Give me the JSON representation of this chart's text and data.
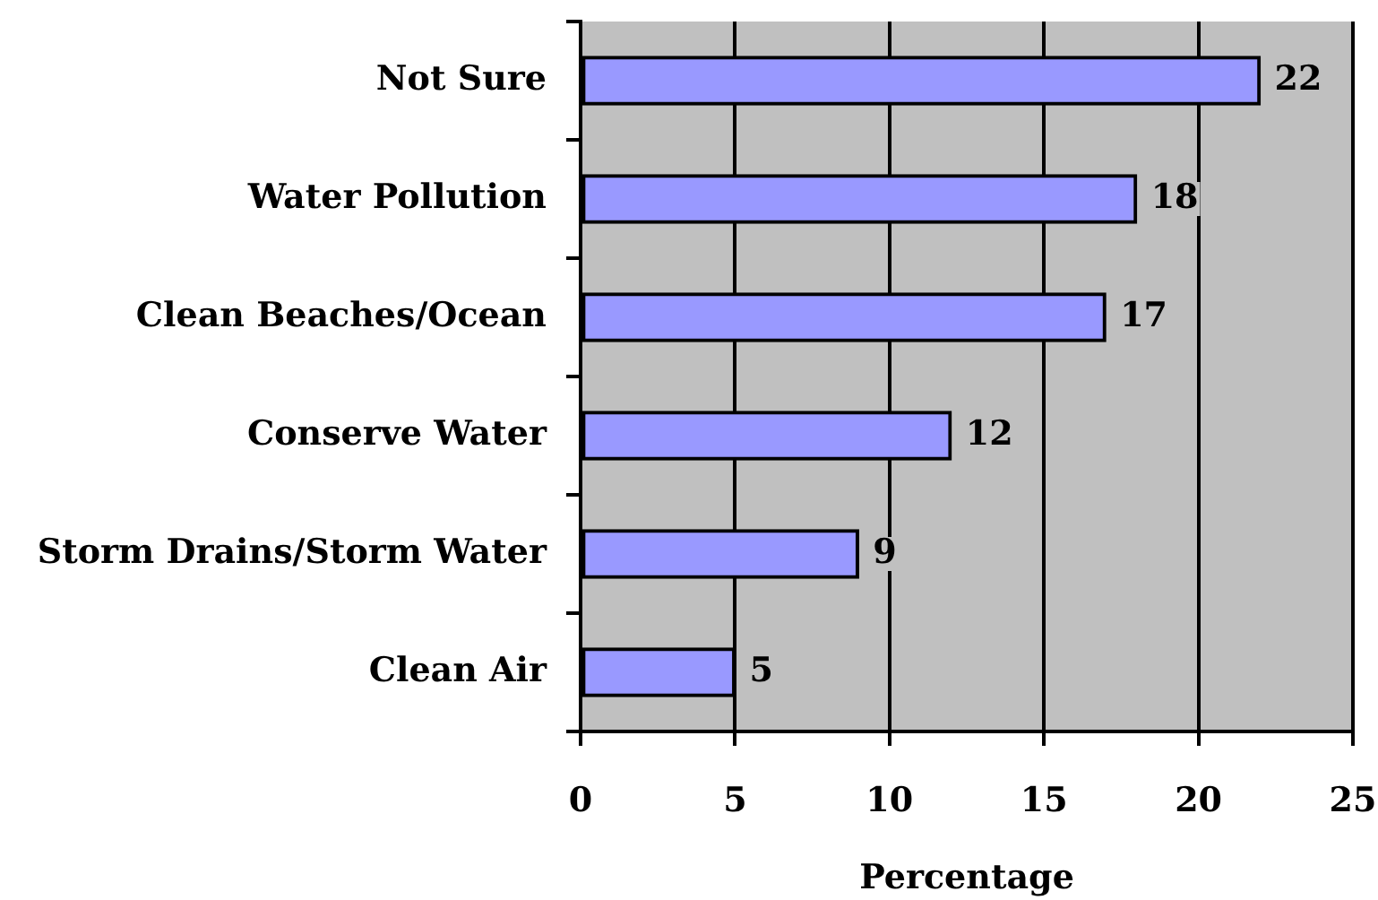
{
  "chart_data": {
    "type": "bar",
    "orientation": "horizontal",
    "categories": [
      "Not Sure",
      "Water Pollution",
      "Clean Beaches/Ocean",
      "Conserve Water",
      "Storm Drains/Storm Water",
      "Clean Air"
    ],
    "values": [
      22,
      18,
      17,
      12,
      9,
      5
    ],
    "color": "#9999ff",
    "xlabel": "Percentage",
    "xlim": [
      0,
      25
    ],
    "xticks": [
      0,
      5,
      10,
      15,
      20,
      25
    ],
    "grid": "x",
    "data_labels": true
  }
}
